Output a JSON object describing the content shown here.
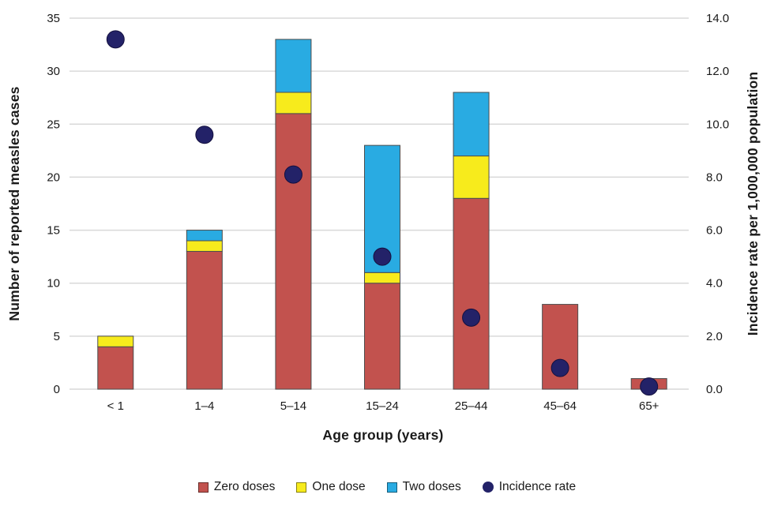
{
  "chart_data": {
    "type": "bar",
    "subtype": "stacked-bars-with-scatter-overlay",
    "categories": [
      "< 1",
      "1–4",
      "5–14",
      "15–24",
      "25–44",
      "45–64",
      "65+"
    ],
    "series": [
      {
        "name": "Zero doses",
        "color": "#c2524e",
        "values": [
          4,
          13,
          26,
          10,
          18,
          8,
          1
        ]
      },
      {
        "name": "One dose",
        "color": "#f7eb1c",
        "values": [
          1,
          1,
          2,
          1,
          4,
          0,
          0
        ]
      },
      {
        "name": "Two doses",
        "color": "#29abe2",
        "values": [
          0,
          1,
          5,
          12,
          6,
          0,
          0
        ]
      }
    ],
    "stacked_totals": [
      5,
      15,
      33,
      23,
      28,
      8,
      1
    ],
    "scatter": {
      "name": "Incidence rate",
      "color": "#232268",
      "axis": "right",
      "values": [
        13.2,
        9.6,
        8.1,
        5.0,
        2.7,
        0.8,
        0.1
      ]
    },
    "left_axis": {
      "label": "Number of reported measles cases",
      "min": 0,
      "max": 35,
      "step": 5,
      "decimals": 0
    },
    "right_axis": {
      "label": "Incidence rate per 1,000,000 population",
      "min": 0,
      "max": 14,
      "step": 2,
      "decimals": 1
    },
    "xlabel": "Age group (years)",
    "grid": true,
    "legend_position": "bottom",
    "style_colors": {
      "grid": "#d9d9d9",
      "bar_outline": "#4d4d4d",
      "text": "#1a1a1a"
    }
  }
}
